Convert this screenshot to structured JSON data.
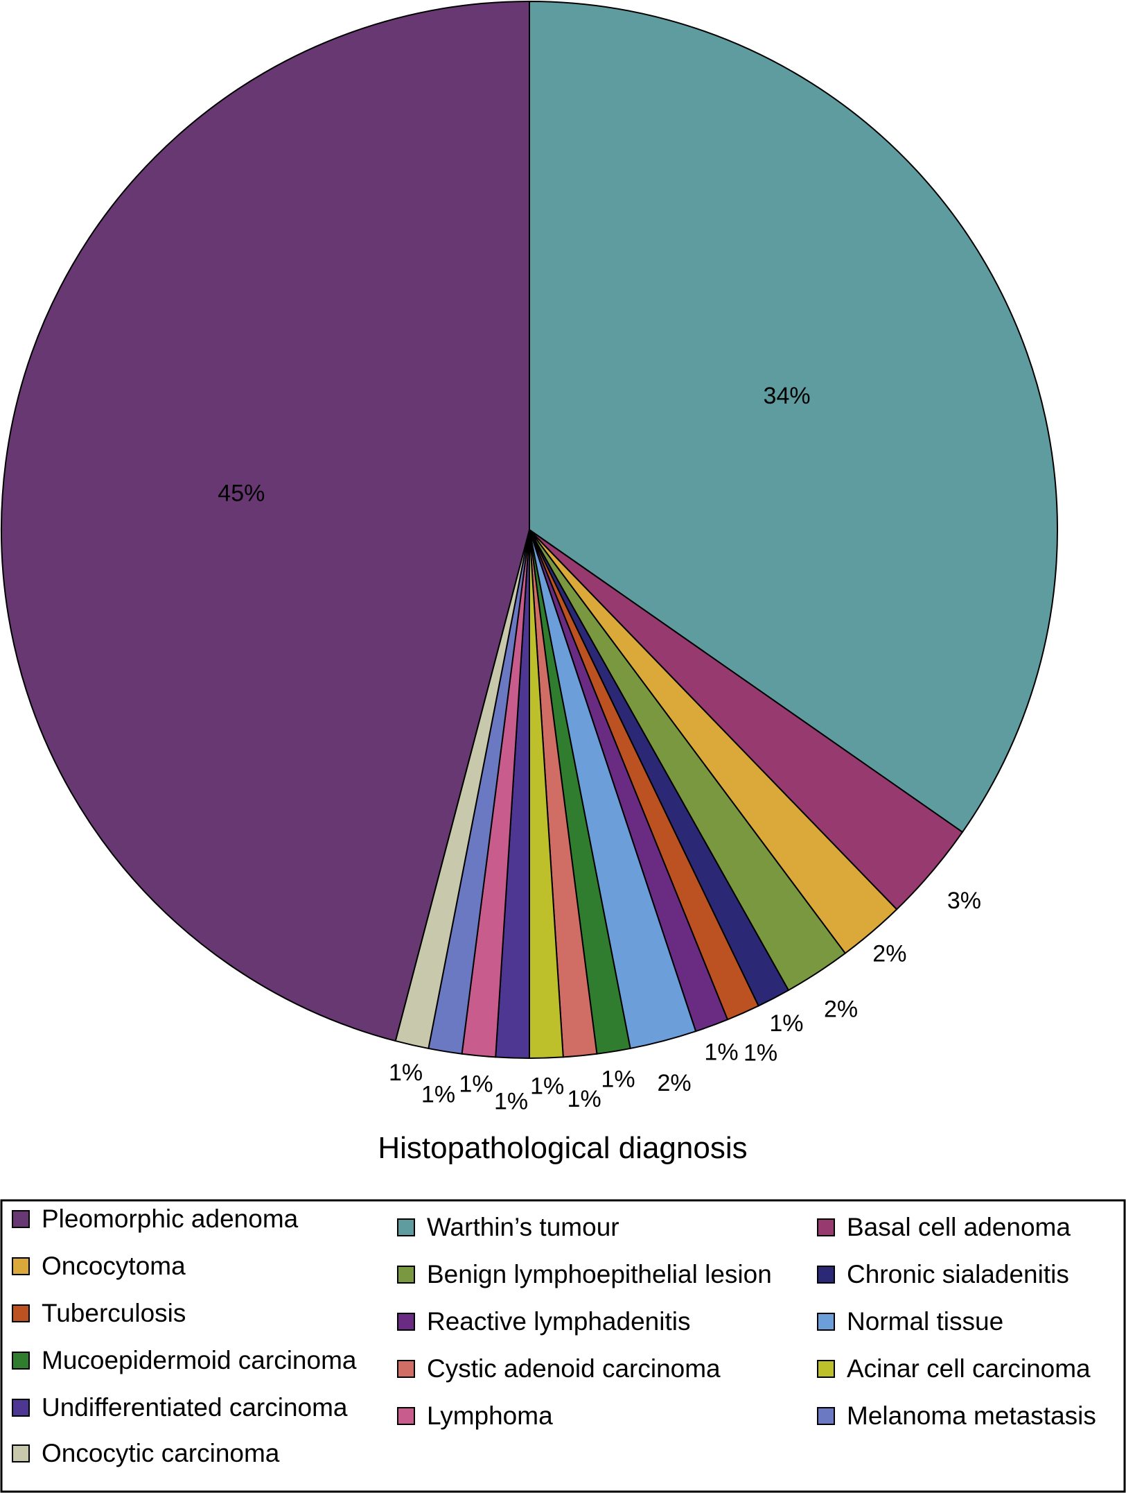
{
  "chart_data": {
    "type": "pie",
    "title": "Histopathological diagnosis",
    "slices": [
      {
        "name": "Warthin’s tumour",
        "value": 34,
        "label": "34%",
        "color": "#5f9c9f"
      },
      {
        "name": "Basal cell adenoma",
        "value": 3,
        "label": "3%",
        "color": "#963a6f"
      },
      {
        "name": "Oncocytoma",
        "value": 2,
        "label": "2%",
        "color": "#dba93a"
      },
      {
        "name": "Benign lymphoepithelial lesion",
        "value": 2,
        "label": "2%",
        "color": "#79983f"
      },
      {
        "name": "Chronic sialadenitis",
        "value": 1,
        "label": "1%",
        "color": "#2b2876"
      },
      {
        "name": "Tuberculosis",
        "value": 1,
        "label": "1%",
        "color": "#bc5222"
      },
      {
        "name": "Reactive lymphadenitis",
        "value": 1,
        "label": "1%",
        "color": "#6a2c82"
      },
      {
        "name": "Normal tissue",
        "value": 2,
        "label": "2%",
        "color": "#6c9ed9"
      },
      {
        "name": "Mucoepidermoid carcinoma",
        "value": 1,
        "label": "1%",
        "color": "#317d2f"
      },
      {
        "name": "Cystic adenoid carcinoma",
        "value": 1,
        "label": "1%",
        "color": "#d06d64"
      },
      {
        "name": "Acinar cell carcinoma",
        "value": 1,
        "label": "1%",
        "color": "#bdbf2b"
      },
      {
        "name": "Undifferentiated carcinoma",
        "value": 1,
        "label": "1%",
        "color": "#4d3793"
      },
      {
        "name": "Lymphoma",
        "value": 1,
        "label": "1%",
        "color": "#c85c8c"
      },
      {
        "name": "Melanoma metastasis",
        "value": 1,
        "label": "1%",
        "color": "#6b78c2"
      },
      {
        "name": "Oncocytic carcinoma",
        "value": 1,
        "label": "1%",
        "color": "#c8c9ac"
      },
      {
        "name": "Pleomorphic adenoma",
        "value": 45,
        "label": "45%",
        "color": "#673872"
      }
    ],
    "legend": {
      "placement": "bottom",
      "columns": [
        [
          "Pleomorphic adenoma",
          "Oncocytoma",
          "Tuberculosis",
          "Mucoepidermoid carcinoma",
          "Undifferentiated carcinoma",
          "Oncocytic carcinoma"
        ],
        [
          "Warthin’s tumour",
          "Benign lymphoepithelial lesion",
          "Reactive lymphadenitis",
          "Cystic adenoid carcinoma",
          "Lymphoma"
        ],
        [
          "Basal cell adenoma",
          "Chronic sialadenitis",
          "Normal tissue",
          "Acinar cell carcinoma",
          "Melanoma metastasis"
        ]
      ]
    }
  }
}
